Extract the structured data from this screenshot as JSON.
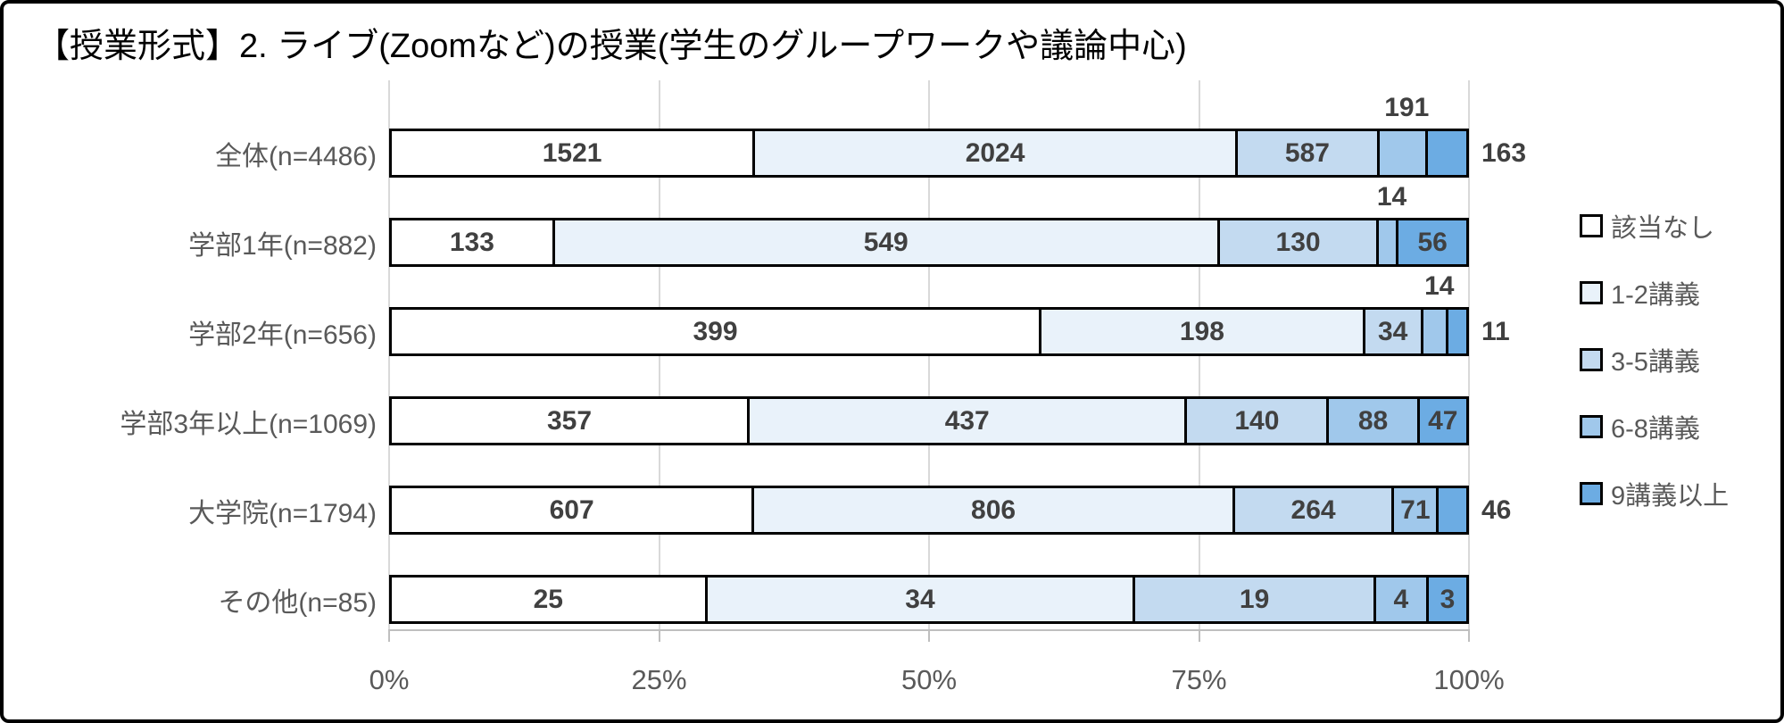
{
  "frame": {
    "background": "#FFFFFF",
    "border_color": "#000000"
  },
  "chart_data": {
    "type": "bar",
    "subtype": "horizontal-100pct-stacked",
    "title": "【授業形式】2. ライブ(Zoomなど)の授業(学生のグループワークや議論中心)",
    "legend_position": "right",
    "grid": true,
    "xlim": [
      0,
      100
    ],
    "x_ticks": [
      "0%",
      "25%",
      "50%",
      "75%",
      "100%"
    ],
    "categories": [
      "全体(n=4486)",
      "学部1年(n=882)",
      "学部2年(n=656)",
      "学部3年以上(n=1069)",
      "大学院(n=1794)",
      "その他(n=85)"
    ],
    "totals": [
      4486,
      882,
      656,
      1069,
      1794,
      85
    ],
    "series": [
      {
        "name": "該当なし",
        "color": "#FFFFFF",
        "values": [
          1521,
          133,
          399,
          357,
          607,
          25
        ]
      },
      {
        "name": "1-2講義",
        "color": "#E9F2FA",
        "values": [
          2024,
          549,
          198,
          437,
          806,
          34
        ]
      },
      {
        "name": "3-5講義",
        "color": "#C3DAF0",
        "values": [
          587,
          130,
          34,
          140,
          264,
          19
        ]
      },
      {
        "name": "6-8講義",
        "color": "#A0C8EB",
        "values": [
          191,
          14,
          14,
          88,
          71,
          4
        ]
      },
      {
        "name": "9講義以上",
        "color": "#6CACE3",
        "values": [
          163,
          56,
          11,
          47,
          46,
          3
        ]
      }
    ],
    "value_label_positions": [
      [
        "inside",
        "inside",
        "inside",
        "above",
        "outside-right"
      ],
      [
        "inside",
        "inside",
        "inside",
        "above",
        "inside"
      ],
      [
        "inside",
        "inside",
        "inside",
        "above",
        "outside-right"
      ],
      [
        "inside",
        "inside",
        "inside",
        "inside",
        "inside"
      ],
      [
        "inside",
        "inside",
        "inside",
        "inside",
        "outside-right"
      ],
      [
        "inside",
        "inside",
        "inside",
        "inside",
        "inside"
      ]
    ],
    "text_colors": {
      "title": "#000000",
      "category_labels": "#595959",
      "axis_labels": "#595959",
      "value_labels": "#404040"
    },
    "gridline_color": "#D9D9D9",
    "axis_line_color": "#BFBFBF",
    "bar_border_color": "#000000"
  }
}
